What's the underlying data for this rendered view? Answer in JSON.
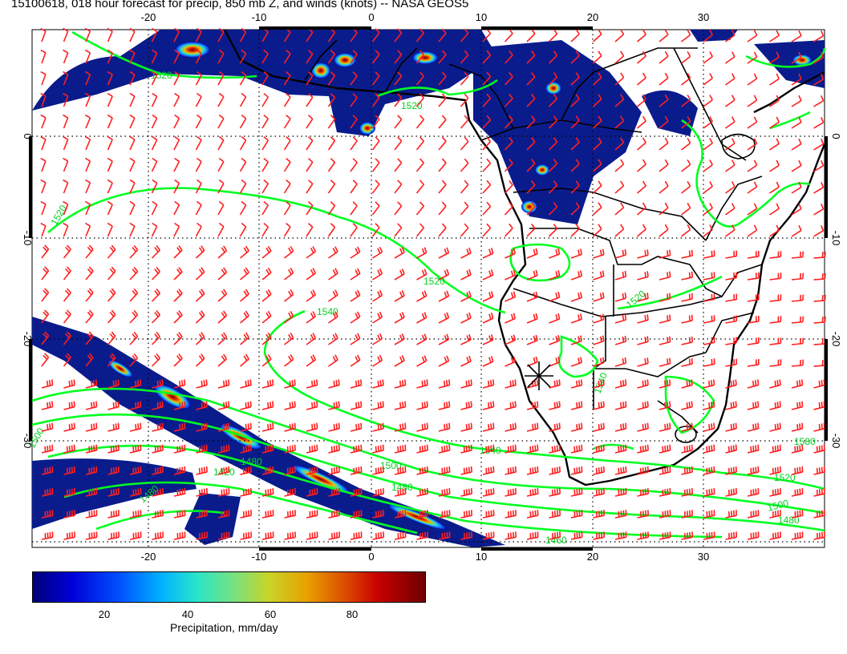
{
  "title": "15100618, 018 hour forecast for precip, 850 mb Z, and winds (knots) -- NASA GEOS5",
  "map": {
    "lon_range": [
      -30,
      40
    ],
    "lat_range": [
      -40,
      10
    ],
    "lon_ticks": [
      "-20",
      "-10",
      "0",
      "10",
      "20",
      "30"
    ],
    "lat_ticks": [
      "0",
      "-10",
      "-20",
      "-30"
    ],
    "contour_labels": [
      "1520",
      "1520",
      "1520",
      "1520",
      "1540",
      "1520",
      "1540",
      "1500",
      "1480",
      "1480",
      "1420",
      "1480",
      "1500",
      "1540",
      "1520",
      "1500",
      "1580",
      "1480",
      "1460"
    ],
    "colors": {
      "wind_barbs": "#ff1e1e",
      "height_contours": "#00ff20",
      "coastlines": "#000000",
      "grid": "#000000"
    }
  },
  "colorbar": {
    "ticks": [
      "20",
      "40",
      "60",
      "80"
    ],
    "label": "Precipitation, mm/day",
    "range": [
      0,
      100
    ]
  }
}
